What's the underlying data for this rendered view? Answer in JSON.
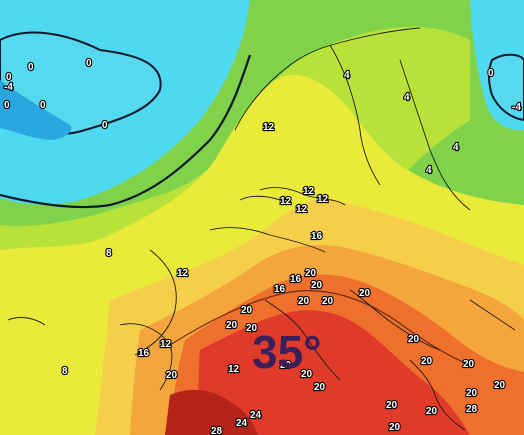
{
  "map": {
    "headline_temperature": "35°",
    "colors": {
      "cold": "#4fd9f0",
      "cool": "#7fd24a",
      "mild": "#b8e23a",
      "warm": "#e9ea3a",
      "hot": "#f6cf4a",
      "hotter": "#f4a63c",
      "very_hot": "#ef6f2d",
      "extreme": "#e03a2a",
      "isotherm": "#0b1a2a",
      "borders": "#1a1a1a",
      "label_text": "#ffffff",
      "headline": "#3a1f5a"
    },
    "isotherm_labels": [
      "0",
      "0",
      "0",
      "-4",
      "0",
      "0",
      "0",
      "4",
      "4",
      "4",
      "4",
      "12",
      "12",
      "12",
      "12",
      "12",
      "16",
      "12",
      "8",
      "16",
      "20",
      "16",
      "20",
      "20",
      "20",
      "20",
      "12",
      "20",
      "20",
      "20",
      "20",
      "16",
      "12",
      "20",
      "20",
      "20",
      "20",
      "20",
      "20",
      "20",
      "20",
      "20",
      "20",
      "28",
      "24",
      "24",
      "20",
      "28",
      "8",
      "-4",
      "0"
    ]
  }
}
